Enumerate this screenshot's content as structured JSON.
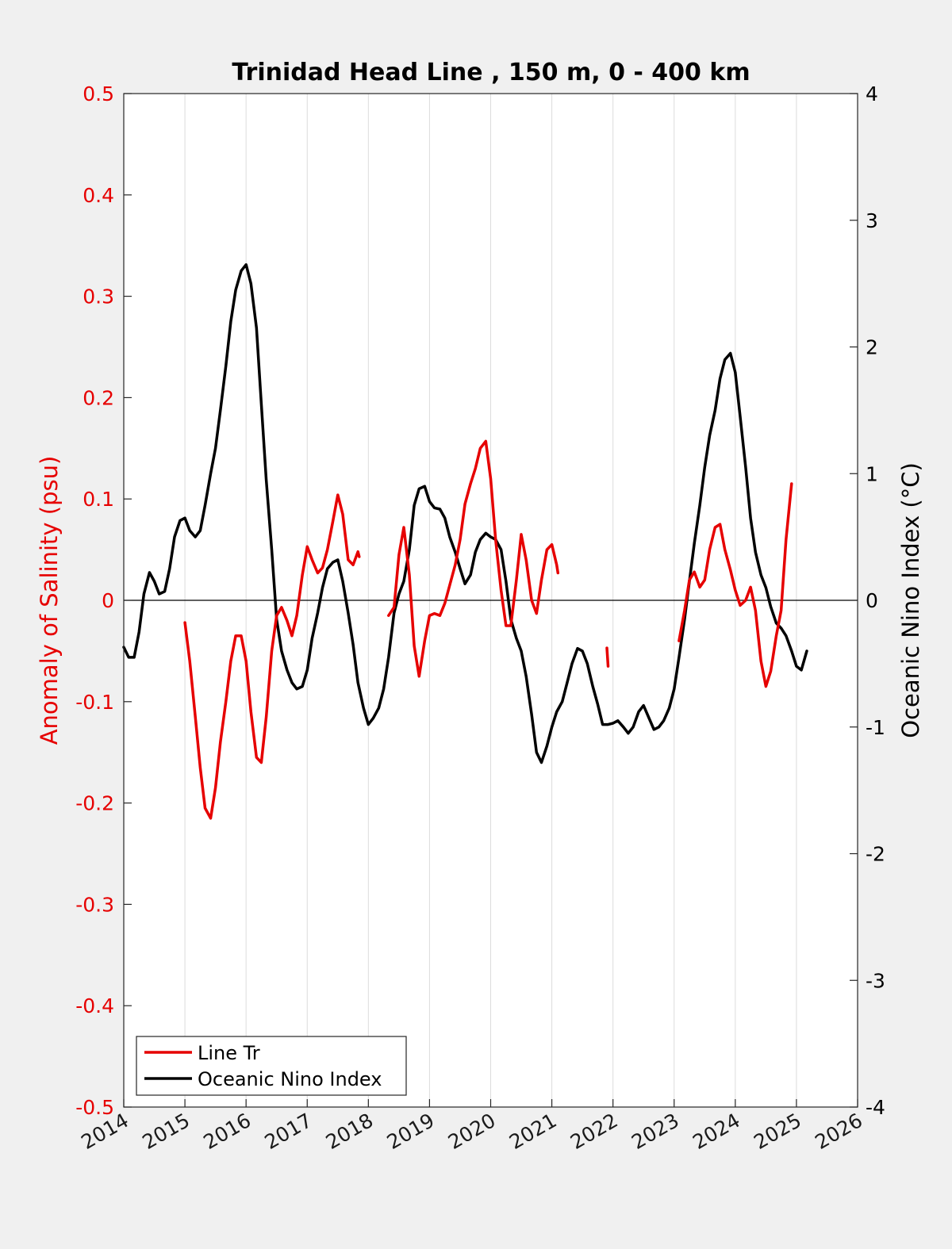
{
  "chart_data": {
    "type": "line",
    "title": "Trinidad Head Line , 150 m, 0 - 400 km",
    "ylabel_left": "Anomaly of Salinity (psu)",
    "ylabel_right": "Oceanic Nino Index (°C)",
    "x_range": [
      2014,
      2026
    ],
    "x_ticks": [
      "2014",
      "2015",
      "2016",
      "2017",
      "2018",
      "2019",
      "2020",
      "2021",
      "2022",
      "2023",
      "2024",
      "2025",
      "2026"
    ],
    "ylim_left": [
      -0.5,
      0.5
    ],
    "yticks_left": [
      "0.5",
      "0.4",
      "0.3",
      "0.2",
      "0.1",
      "0",
      "-0.1",
      "-0.2",
      "-0.3",
      "-0.4",
      "-0.5"
    ],
    "ylim_right": [
      -4,
      4
    ],
    "yticks_right": [
      "4",
      "3",
      "2",
      "1",
      "0",
      "-1",
      "-2",
      "-3",
      "-4"
    ],
    "grid": "vertical",
    "legend_position": "bottom-left",
    "colors": {
      "salinity": "#e60000",
      "oni": "#000000",
      "left_axis": "#e60000"
    },
    "series": [
      {
        "name": "Line Tr",
        "axis": "left",
        "segments": [
          [
            [
              2015.0,
              -0.022
            ],
            [
              2015.08,
              -0.06
            ],
            [
              2015.17,
              -0.115
            ],
            [
              2015.25,
              -0.165
            ],
            [
              2015.33,
              -0.205
            ],
            [
              2015.42,
              -0.215
            ],
            [
              2015.5,
              -0.185
            ],
            [
              2015.58,
              -0.14
            ],
            [
              2015.67,
              -0.1
            ],
            [
              2015.75,
              -0.06
            ],
            [
              2015.83,
              -0.035
            ],
            [
              2015.92,
              -0.035
            ],
            [
              2016.0,
              -0.06
            ],
            [
              2016.08,
              -0.11
            ],
            [
              2016.17,
              -0.155
            ],
            [
              2016.25,
              -0.16
            ],
            [
              2016.33,
              -0.115
            ],
            [
              2016.42,
              -0.05
            ],
            [
              2016.5,
              -0.015
            ],
            [
              2016.58,
              -0.007
            ],
            [
              2016.67,
              -0.02
            ],
            [
              2016.75,
              -0.035
            ],
            [
              2016.83,
              -0.015
            ],
            [
              2016.92,
              0.025
            ],
            [
              2017.0,
              0.053
            ],
            [
              2017.08,
              0.04
            ],
            [
              2017.17,
              0.027
            ],
            [
              2017.25,
              0.032
            ],
            [
              2017.33,
              0.05
            ],
            [
              2017.42,
              0.078
            ],
            [
              2017.5,
              0.104
            ],
            [
              2017.58,
              0.085
            ],
            [
              2017.67,
              0.04
            ],
            [
              2017.75,
              0.035
            ],
            [
              2017.83,
              0.048
            ],
            [
              2017.85,
              0.043
            ]
          ],
          [
            [
              2018.33,
              -0.015
            ],
            [
              2018.42,
              -0.007
            ],
            [
              2018.5,
              0.045
            ],
            [
              2018.58,
              0.072
            ],
            [
              2018.67,
              0.025
            ],
            [
              2018.75,
              -0.045
            ],
            [
              2018.83,
              -0.075
            ],
            [
              2018.92,
              -0.04
            ],
            [
              2019.0,
              -0.015
            ],
            [
              2019.08,
              -0.013
            ],
            [
              2019.17,
              -0.015
            ],
            [
              2019.25,
              -0.003
            ],
            [
              2019.33,
              0.015
            ],
            [
              2019.42,
              0.035
            ],
            [
              2019.5,
              0.06
            ],
            [
              2019.58,
              0.095
            ],
            [
              2019.67,
              0.115
            ],
            [
              2019.75,
              0.13
            ],
            [
              2019.83,
              0.15
            ],
            [
              2019.92,
              0.157
            ],
            [
              2020.0,
              0.12
            ],
            [
              2020.08,
              0.06
            ],
            [
              2020.17,
              0.01
            ],
            [
              2020.25,
              -0.025
            ],
            [
              2020.33,
              -0.025
            ],
            [
              2020.42,
              0.02
            ],
            [
              2020.5,
              0.065
            ],
            [
              2020.58,
              0.04
            ],
            [
              2020.67,
              0.0
            ],
            [
              2020.75,
              -0.013
            ],
            [
              2020.83,
              0.02
            ],
            [
              2020.92,
              0.05
            ],
            [
              2021.0,
              0.055
            ],
            [
              2021.08,
              0.035
            ],
            [
              2021.1,
              0.027
            ]
          ],
          [
            [
              2021.9,
              -0.047
            ],
            [
              2021.92,
              -0.065
            ]
          ],
          [
            [
              2023.08,
              -0.04
            ],
            [
              2023.17,
              -0.01
            ],
            [
              2023.25,
              0.02
            ],
            [
              2023.33,
              0.028
            ],
            [
              2023.42,
              0.013
            ],
            [
              2023.5,
              0.02
            ],
            [
              2023.58,
              0.05
            ],
            [
              2023.67,
              0.072
            ],
            [
              2023.75,
              0.075
            ],
            [
              2023.83,
              0.05
            ],
            [
              2023.92,
              0.03
            ],
            [
              2024.0,
              0.01
            ],
            [
              2024.08,
              -0.005
            ],
            [
              2024.17,
              0.0
            ],
            [
              2024.25,
              0.013
            ],
            [
              2024.33,
              -0.01
            ],
            [
              2024.42,
              -0.06
            ],
            [
              2024.5,
              -0.085
            ],
            [
              2024.58,
              -0.07
            ],
            [
              2024.67,
              -0.035
            ],
            [
              2024.75,
              -0.01
            ],
            [
              2024.83,
              0.06
            ],
            [
              2024.92,
              0.115
            ]
          ]
        ]
      },
      {
        "name": "Oceanic Nino Index",
        "axis": "right",
        "segments": [
          [
            [
              2014.0,
              -0.37
            ],
            [
              2014.08,
              -0.45
            ],
            [
              2014.17,
              -0.45
            ],
            [
              2014.25,
              -0.25
            ],
            [
              2014.33,
              0.05
            ],
            [
              2014.42,
              0.22
            ],
            [
              2014.5,
              0.15
            ],
            [
              2014.58,
              0.05
            ],
            [
              2014.67,
              0.07
            ],
            [
              2014.75,
              0.25
            ],
            [
              2014.83,
              0.5
            ],
            [
              2014.92,
              0.63
            ],
            [
              2015.0,
              0.65
            ],
            [
              2015.08,
              0.55
            ],
            [
              2015.17,
              0.5
            ],
            [
              2015.25,
              0.55
            ],
            [
              2015.33,
              0.75
            ],
            [
              2015.42,
              1.0
            ],
            [
              2015.5,
              1.2
            ],
            [
              2015.58,
              1.5
            ],
            [
              2015.67,
              1.85
            ],
            [
              2015.75,
              2.2
            ],
            [
              2015.83,
              2.45
            ],
            [
              2015.92,
              2.6
            ],
            [
              2016.0,
              2.65
            ],
            [
              2016.08,
              2.5
            ],
            [
              2016.17,
              2.15
            ],
            [
              2016.25,
              1.55
            ],
            [
              2016.33,
              0.95
            ],
            [
              2016.42,
              0.4
            ],
            [
              2016.5,
              -0.15
            ],
            [
              2016.58,
              -0.4
            ],
            [
              2016.67,
              -0.55
            ],
            [
              2016.75,
              -0.65
            ],
            [
              2016.83,
              -0.7
            ],
            [
              2016.92,
              -0.68
            ],
            [
              2017.0,
              -0.55
            ],
            [
              2017.08,
              -0.3
            ],
            [
              2017.17,
              -0.1
            ],
            [
              2017.25,
              0.1
            ],
            [
              2017.33,
              0.25
            ],
            [
              2017.42,
              0.3
            ],
            [
              2017.5,
              0.32
            ],
            [
              2017.58,
              0.15
            ],
            [
              2017.67,
              -0.1
            ],
            [
              2017.75,
              -0.35
            ],
            [
              2017.83,
              -0.65
            ],
            [
              2017.92,
              -0.85
            ],
            [
              2018.0,
              -0.98
            ],
            [
              2018.08,
              -0.93
            ],
            [
              2018.17,
              -0.85
            ],
            [
              2018.25,
              -0.7
            ],
            [
              2018.33,
              -0.45
            ],
            [
              2018.42,
              -0.1
            ],
            [
              2018.5,
              0.05
            ],
            [
              2018.58,
              0.15
            ],
            [
              2018.67,
              0.4
            ],
            [
              2018.75,
              0.75
            ],
            [
              2018.83,
              0.88
            ],
            [
              2018.92,
              0.9
            ],
            [
              2019.0,
              0.78
            ],
            [
              2019.08,
              0.73
            ],
            [
              2019.17,
              0.72
            ],
            [
              2019.25,
              0.65
            ],
            [
              2019.33,
              0.5
            ],
            [
              2019.42,
              0.38
            ],
            [
              2019.5,
              0.25
            ],
            [
              2019.58,
              0.13
            ],
            [
              2019.67,
              0.2
            ],
            [
              2019.75,
              0.38
            ],
            [
              2019.83,
              0.48
            ],
            [
              2019.92,
              0.53
            ],
            [
              2020.0,
              0.5
            ],
            [
              2020.08,
              0.48
            ],
            [
              2020.17,
              0.4
            ],
            [
              2020.25,
              0.15
            ],
            [
              2020.33,
              -0.15
            ],
            [
              2020.42,
              -0.3
            ],
            [
              2020.5,
              -0.4
            ],
            [
              2020.58,
              -0.6
            ],
            [
              2020.67,
              -0.9
            ],
            [
              2020.75,
              -1.2
            ],
            [
              2020.83,
              -1.28
            ],
            [
              2020.92,
              -1.15
            ],
            [
              2021.0,
              -1.0
            ],
            [
              2021.08,
              -0.88
            ],
            [
              2021.17,
              -0.8
            ],
            [
              2021.25,
              -0.65
            ],
            [
              2021.33,
              -0.5
            ],
            [
              2021.42,
              -0.38
            ],
            [
              2021.5,
              -0.4
            ],
            [
              2021.58,
              -0.5
            ],
            [
              2021.67,
              -0.68
            ],
            [
              2021.75,
              -0.82
            ],
            [
              2021.83,
              -0.98
            ],
            [
              2021.92,
              -0.98
            ],
            [
              2022.0,
              -0.97
            ],
            [
              2022.08,
              -0.95
            ],
            [
              2022.17,
              -1.0
            ],
            [
              2022.25,
              -1.05
            ],
            [
              2022.33,
              -1.0
            ],
            [
              2022.42,
              -0.88
            ],
            [
              2022.5,
              -0.83
            ],
            [
              2022.58,
              -0.92
            ],
            [
              2022.67,
              -1.02
            ],
            [
              2022.75,
              -1.0
            ],
            [
              2022.83,
              -0.95
            ],
            [
              2022.92,
              -0.85
            ],
            [
              2023.0,
              -0.7
            ],
            [
              2023.08,
              -0.45
            ],
            [
              2023.17,
              -0.15
            ],
            [
              2023.25,
              0.15
            ],
            [
              2023.33,
              0.45
            ],
            [
              2023.42,
              0.75
            ],
            [
              2023.5,
              1.05
            ],
            [
              2023.58,
              1.3
            ],
            [
              2023.67,
              1.5
            ],
            [
              2023.75,
              1.75
            ],
            [
              2023.83,
              1.9
            ],
            [
              2023.92,
              1.95
            ],
            [
              2024.0,
              1.8
            ],
            [
              2024.08,
              1.45
            ],
            [
              2024.17,
              1.05
            ],
            [
              2024.25,
              0.65
            ],
            [
              2024.33,
              0.38
            ],
            [
              2024.42,
              0.2
            ],
            [
              2024.5,
              0.1
            ],
            [
              2024.58,
              -0.05
            ],
            [
              2024.67,
              -0.18
            ],
            [
              2024.75,
              -0.22
            ],
            [
              2024.83,
              -0.28
            ],
            [
              2024.92,
              -0.4
            ],
            [
              2025.0,
              -0.52
            ],
            [
              2025.08,
              -0.55
            ],
            [
              2025.17,
              -0.4
            ]
          ]
        ]
      }
    ]
  }
}
